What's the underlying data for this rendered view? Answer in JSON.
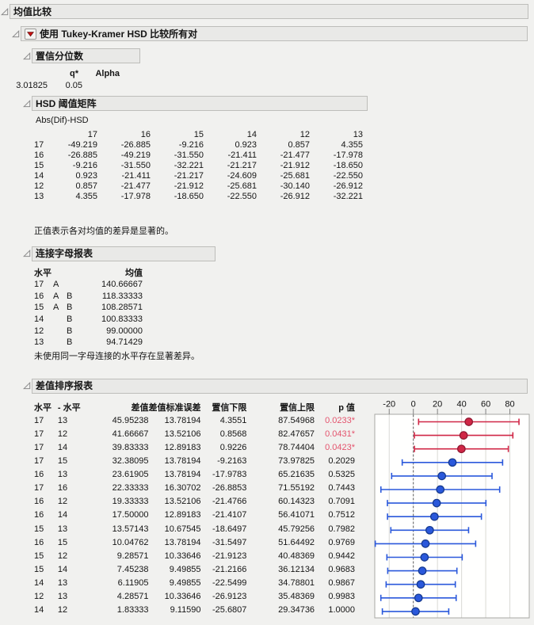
{
  "outline": {
    "means_comparison_title": "均值比较",
    "tukey_title": "使用 Tukey-Kramer HSD 比较所有对"
  },
  "conf_quantile": {
    "title": "置信分位数",
    "q_label": "q*",
    "alpha_label": "Alpha",
    "q_value": "3.01825",
    "alpha_value": "0.05"
  },
  "hsd_matrix": {
    "title": "HSD 阈值矩阵",
    "subtitle": "Abs(Dif)-HSD",
    "levels": [
      "17",
      "16",
      "15",
      "14",
      "12",
      "13"
    ],
    "rows": [
      [
        "-49.219",
        "-26.885",
        "-9.216",
        "0.923",
        "0.857",
        "4.355"
      ],
      [
        "-26.885",
        "-49.219",
        "-31.550",
        "-21.411",
        "-21.477",
        "-17.978"
      ],
      [
        "-9.216",
        "-31.550",
        "-32.221",
        "-21.217",
        "-21.912",
        "-18.650"
      ],
      [
        "0.923",
        "-21.411",
        "-21.217",
        "-24.609",
        "-25.681",
        "-22.550"
      ],
      [
        "0.857",
        "-21.477",
        "-21.912",
        "-25.681",
        "-30.140",
        "-26.912"
      ],
      [
        "4.355",
        "-17.978",
        "-18.650",
        "-22.550",
        "-26.912",
        "-32.221"
      ]
    ],
    "footnote": "正值表示各对均值的差异是显著的。"
  },
  "connecting_letters": {
    "title": "连接字母报表",
    "level_header": "水平",
    "mean_header": "均值",
    "rows": [
      {
        "level": "17",
        "letter1": "A",
        "letter2": "",
        "mean": "140.66667"
      },
      {
        "level": "16",
        "letter1": "A",
        "letter2": "B",
        "mean": "118.33333"
      },
      {
        "level": "15",
        "letter1": "A",
        "letter2": "B",
        "mean": "108.28571"
      },
      {
        "level": "14",
        "letter1": "",
        "letter2": "B",
        "mean": "100.83333"
      },
      {
        "level": "12",
        "letter1": "",
        "letter2": "B",
        "mean": "99.00000"
      },
      {
        "level": "13",
        "letter1": "",
        "letter2": "B",
        "mean": "94.71429"
      }
    ],
    "footnote": "未使用同一字母连接的水平存在显著差异。"
  },
  "ordered_differences": {
    "title": "差值排序报表",
    "headers": [
      "水平",
      "- 水平",
      "差值",
      "差值标准误差",
      "置信下限",
      "置信上限",
      "p 值"
    ],
    "rows": [
      {
        "a": "17",
        "b": "13",
        "diff": "45.95238",
        "se": "13.78194",
        "lcl": "4.3551",
        "ucl": "87.54968",
        "p": "0.0233*",
        "sig": true
      },
      {
        "a": "17",
        "b": "12",
        "diff": "41.66667",
        "se": "13.52106",
        "lcl": "0.8568",
        "ucl": "82.47657",
        "p": "0.0431*",
        "sig": true
      },
      {
        "a": "17",
        "b": "14",
        "diff": "39.83333",
        "se": "12.89183",
        "lcl": "0.9226",
        "ucl": "78.74404",
        "p": "0.0423*",
        "sig": true
      },
      {
        "a": "17",
        "b": "15",
        "diff": "32.38095",
        "se": "13.78194",
        "lcl": "-9.2163",
        "ucl": "73.97825",
        "p": "0.2029",
        "sig": false
      },
      {
        "a": "16",
        "b": "13",
        "diff": "23.61905",
        "se": "13.78194",
        "lcl": "-17.9783",
        "ucl": "65.21635",
        "p": "0.5325",
        "sig": false
      },
      {
        "a": "17",
        "b": "16",
        "diff": "22.33333",
        "se": "16.30702",
        "lcl": "-26.8853",
        "ucl": "71.55192",
        "p": "0.7443",
        "sig": false
      },
      {
        "a": "16",
        "b": "12",
        "diff": "19.33333",
        "se": "13.52106",
        "lcl": "-21.4766",
        "ucl": "60.14323",
        "p": "0.7091",
        "sig": false
      },
      {
        "a": "16",
        "b": "14",
        "diff": "17.50000",
        "se": "12.89183",
        "lcl": "-21.4107",
        "ucl": "56.41071",
        "p": "0.7512",
        "sig": false
      },
      {
        "a": "15",
        "b": "13",
        "diff": "13.57143",
        "se": "10.67545",
        "lcl": "-18.6497",
        "ucl": "45.79256",
        "p": "0.7982",
        "sig": false
      },
      {
        "a": "16",
        "b": "15",
        "diff": "10.04762",
        "se": "13.78194",
        "lcl": "-31.5497",
        "ucl": "51.64492",
        "p": "0.9769",
        "sig": false
      },
      {
        "a": "15",
        "b": "12",
        "diff": "9.28571",
        "se": "10.33646",
        "lcl": "-21.9123",
        "ucl": "40.48369",
        "p": "0.9442",
        "sig": false
      },
      {
        "a": "15",
        "b": "14",
        "diff": "7.45238",
        "se": "9.49855",
        "lcl": "-21.2166",
        "ucl": "36.12134",
        "p": "0.9683",
        "sig": false
      },
      {
        "a": "14",
        "b": "13",
        "diff": "6.11905",
        "se": "9.49855",
        "lcl": "-22.5499",
        "ucl": "34.78801",
        "p": "0.9867",
        "sig": false
      },
      {
        "a": "12",
        "b": "13",
        "diff": "4.28571",
        "se": "10.33646",
        "lcl": "-26.9123",
        "ucl": "35.48369",
        "p": "0.9983",
        "sig": false
      },
      {
        "a": "14",
        "b": "12",
        "diff": "1.83333",
        "se": "9.11590",
        "lcl": "-25.6807",
        "ucl": "29.34736",
        "p": "1.0000",
        "sig": false
      }
    ]
  },
  "chart_data": {
    "type": "scatter",
    "subtype": "horizontal-confidence-intervals",
    "xlabel": "",
    "ylabel": "",
    "x_ticks": [
      -20,
      0,
      20,
      40,
      60,
      80
    ],
    "xlim": [
      -32,
      96
    ],
    "reference_line_x": 0,
    "grid": true,
    "points": [
      {
        "pair": "17-13",
        "diff": 45.95238,
        "lower": 4.3551,
        "upper": 87.54968,
        "significant": true
      },
      {
        "pair": "17-12",
        "diff": 41.66667,
        "lower": 0.8568,
        "upper": 82.47657,
        "significant": true
      },
      {
        "pair": "17-14",
        "diff": 39.83333,
        "lower": 0.9226,
        "upper": 78.74404,
        "significant": true
      },
      {
        "pair": "17-15",
        "diff": 32.38095,
        "lower": -9.2163,
        "upper": 73.97825,
        "significant": false
      },
      {
        "pair": "16-13",
        "diff": 23.61905,
        "lower": -17.9783,
        "upper": 65.21635,
        "significant": false
      },
      {
        "pair": "17-16",
        "diff": 22.33333,
        "lower": -26.8853,
        "upper": 71.55192,
        "significant": false
      },
      {
        "pair": "16-12",
        "diff": 19.33333,
        "lower": -21.4766,
        "upper": 60.14323,
        "significant": false
      },
      {
        "pair": "16-14",
        "diff": 17.5,
        "lower": -21.4107,
        "upper": 56.41071,
        "significant": false
      },
      {
        "pair": "15-13",
        "diff": 13.57143,
        "lower": -18.6497,
        "upper": 45.79256,
        "significant": false
      },
      {
        "pair": "16-15",
        "diff": 10.04762,
        "lower": -31.5497,
        "upper": 51.64492,
        "significant": false
      },
      {
        "pair": "15-12",
        "diff": 9.28571,
        "lower": -21.9123,
        "upper": 40.48369,
        "significant": false
      },
      {
        "pair": "15-14",
        "diff": 7.45238,
        "lower": -21.2166,
        "upper": 36.12134,
        "significant": false
      },
      {
        "pair": "14-13",
        "diff": 6.11905,
        "lower": -22.5499,
        "upper": 34.78801,
        "significant": false
      },
      {
        "pair": "12-13",
        "diff": 4.28571,
        "lower": -26.9123,
        "upper": 35.48369,
        "significant": false
      },
      {
        "pair": "14-12",
        "diff": 1.83333,
        "lower": -25.6807,
        "upper": 29.34736,
        "significant": false
      }
    ]
  },
  "colors": {
    "significant_red": "#d02746",
    "significant_red_dark": "#8f1931",
    "nonsignificant_blue": "#2a58db",
    "nonsignificant_blue_dark": "#163a8f",
    "p_value_red": "#e4546e",
    "gridline": "#d9d9d5",
    "frame": "#a8a8a4"
  }
}
